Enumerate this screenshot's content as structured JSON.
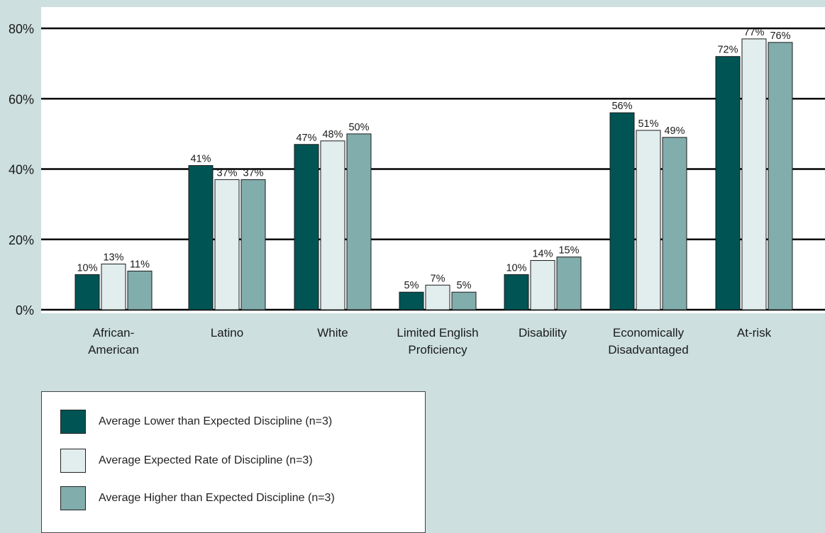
{
  "chart_data": {
    "type": "bar",
    "title": "",
    "xlabel": "",
    "ylabel": "",
    "ylim": [
      0,
      80
    ],
    "yticks": [
      0,
      20,
      40,
      60,
      80
    ],
    "ytick_labels": [
      "0%",
      "20%",
      "40%",
      "60%",
      "80%"
    ],
    "grid": true,
    "legend_position": "bottom-left",
    "categories": [
      [
        "African-",
        "American"
      ],
      [
        "Latino"
      ],
      [
        "White"
      ],
      [
        "Limited English",
        "Proficiency"
      ],
      [
        "Disability"
      ],
      [
        "Economically",
        "Disadvantaged"
      ],
      [
        "At-risk"
      ]
    ],
    "series": [
      {
        "name": "Average Lower than Expected Discipline (n=3)",
        "color": "#005454",
        "values": [
          10,
          41,
          47,
          5,
          10,
          56,
          72
        ],
        "labels": [
          "10%",
          "41%",
          "47%",
          "5%",
          "10%",
          "56%",
          "72%"
        ]
      },
      {
        "name": "Average Expected Rate of Discipline (n=3)",
        "color": "#e2eded",
        "values": [
          13,
          37,
          48,
          7,
          14,
          51,
          77
        ],
        "labels": [
          "13%",
          "37%",
          "48%",
          "7%",
          "14%",
          "51%",
          "77%"
        ]
      },
      {
        "name": "Average Higher than Expected Discipline (n=3)",
        "color": "#81adac",
        "values": [
          11,
          37,
          50,
          5,
          15,
          49,
          76
        ],
        "labels": [
          "11%",
          "37%",
          "50%",
          "5%",
          "15%",
          "49%",
          "76%"
        ]
      }
    ]
  }
}
